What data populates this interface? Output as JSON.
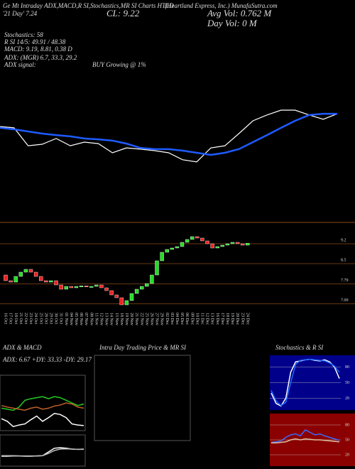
{
  "header": {
    "title": "Ge Mt Intraday ADX,MACD,R SI,Stochastics,MR SI Charts HTLD",
    "company": "(Heartland Express, Inc.) MunafaSutra.com",
    "ma_label": "'21 Day' 7.24",
    "close": "CL: 9.22",
    "avg_vol": "Avg Vol: 0.762 M",
    "day_vol": "Day Vol: 0 M"
  },
  "stats": [
    "Stochastics: 58",
    "R SI 14/5: 49.91 / 48.38",
    "MACD: 9.19, 8.81, 0.38 D",
    "ADX: (MGR) 6.7, 33.3, 29.2",
    "ADX signal:",
    "BUY Growing @ 1%"
  ],
  "chart_data": [
    {
      "type": "line",
      "ylim": [
        6.5,
        10
      ],
      "series": [
        {
          "name": "Price",
          "color": "#ffffff",
          "values": [
            8.41,
            8.37,
            7.78,
            7.83,
            8.02,
            7.78,
            7.9,
            7.85,
            7.55,
            7.71,
            7.67,
            7.62,
            7.55,
            7.32,
            7.25,
            7.71,
            7.78,
            8.18,
            8.6,
            8.79,
            8.95,
            8.95,
            8.79,
            8.65,
            8.83
          ]
        },
        {
          "name": "MA",
          "color": "#1e5bff",
          "values": [
            8.37,
            8.32,
            8.25,
            8.18,
            8.13,
            8.09,
            8.02,
            7.99,
            7.95,
            7.85,
            7.71,
            7.67,
            7.67,
            7.62,
            7.55,
            7.48,
            7.55,
            7.67,
            7.9,
            8.13,
            8.37,
            8.6,
            8.79,
            8.83,
            8.83
          ]
        }
      ]
    },
    {
      "type": "candlestick",
      "categories": [
        "16 Oct",
        "17 Oct",
        "18 Oct",
        "21 Oct",
        "22 Oct",
        "23 Oct",
        "24 Oct",
        "25 Oct",
        "28 Oct",
        "29 Oct",
        "30 Oct",
        "31 Oct",
        "01 Nov",
        "04 Nov",
        "05 Nov",
        "06 Nov",
        "07 Nov",
        "08 Nov",
        "11 Nov",
        "12 Nov",
        "13 Nov",
        "14 Nov",
        "15 Nov",
        "18 Nov",
        "19 Nov",
        "20 Nov",
        "21 Nov",
        "22 Nov",
        "25 Nov",
        "26 Nov",
        "27 Nov",
        "29 Nov",
        "02 Dec",
        "03 Dec",
        "04 Dec",
        "05 Dec",
        "06 Dec",
        "09 Dec",
        "10 Dec",
        "11 Dec",
        "12 Dec",
        "13 Dec",
        "16 Dec",
        "17 Dec",
        "18 Dec",
        "19 Dec",
        "20 Dec",
        "23 Dec",
        "24 Dec"
      ],
      "open": [
        8.1,
        7.9,
        7.85,
        8.05,
        8.2,
        8.3,
        8.2,
        8.05,
        7.9,
        7.85,
        7.9,
        7.75,
        7.6,
        7.7,
        7.65,
        7.7,
        7.72,
        7.68,
        7.7,
        7.75,
        7.65,
        7.55,
        7.4,
        7.3,
        7.05,
        7.2,
        7.45,
        7.6,
        7.7,
        7.8,
        8.1,
        8.6,
        8.9,
        9.0,
        9.05,
        9.1,
        9.25,
        9.35,
        9.45,
        9.4,
        9.3,
        9.2,
        9.05,
        9.1,
        9.15,
        9.2,
        9.25,
        9.2,
        9.15
      ],
      "close": [
        7.9,
        7.85,
        8.05,
        8.2,
        8.3,
        8.2,
        8.05,
        7.9,
        7.85,
        7.9,
        7.75,
        7.6,
        7.7,
        7.65,
        7.7,
        7.72,
        7.68,
        7.7,
        7.75,
        7.65,
        7.55,
        7.4,
        7.3,
        7.05,
        7.2,
        7.45,
        7.6,
        7.7,
        7.8,
        8.1,
        8.6,
        8.9,
        9.0,
        9.05,
        9.1,
        9.25,
        9.35,
        9.45,
        9.4,
        9.3,
        9.2,
        9.05,
        9.1,
        9.15,
        9.2,
        9.25,
        9.2,
        9.15,
        9.22
      ],
      "ylim": [
        6.9,
        9.9
      ],
      "yticks": [
        9.2,
        8.5,
        7.79,
        7.09
      ]
    },
    {
      "type": "line",
      "title": "ADX & MACD",
      "label": "ADX: 6.67 +DY: 33.33 -DY: 29.17",
      "ylim": [
        0,
        100
      ],
      "series": [
        {
          "name": "+DI",
          "color": "#22cc22",
          "values": [
            40,
            38,
            36,
            42,
            55,
            58,
            60,
            62,
            58,
            62,
            60,
            55,
            50,
            45,
            48
          ]
        },
        {
          "name": "-DI",
          "color": "#c0602a",
          "values": [
            45,
            42,
            40,
            38,
            36,
            40,
            42,
            38,
            40,
            44,
            46,
            50,
            48,
            42,
            40
          ]
        },
        {
          "name": "ADX",
          "color": "#ffffff",
          "values": [
            20,
            15,
            5,
            8,
            10,
            18,
            25,
            15,
            22,
            30,
            28,
            22,
            10,
            8,
            7
          ]
        }
      ]
    },
    {
      "type": "line",
      "ylim": [
        0,
        100
      ],
      "series": [
        {
          "name": "MACD",
          "color": "#ffffff",
          "values": [
            30,
            30,
            31,
            31,
            30,
            30,
            31,
            32,
            45,
            58,
            60,
            58,
            55,
            54,
            55
          ]
        },
        {
          "name": "Signal",
          "color": "#bbbbbb",
          "values": [
            32,
            32,
            32,
            31,
            31,
            31,
            31,
            32,
            40,
            50,
            55,
            56,
            55,
            54,
            54
          ]
        }
      ]
    },
    {
      "type": "panel",
      "title": "Intra Day Trading Price & MR SI"
    },
    {
      "type": "line",
      "title": "Stochastics & R SI",
      "ylim": [
        0,
        100
      ],
      "yticks": [
        80,
        50,
        20
      ],
      "series": [
        {
          "name": "%K",
          "color": "#ffffff",
          "values": [
            30,
            10,
            5,
            20,
            70,
            90,
            92,
            94,
            95,
            93,
            92,
            94,
            90,
            80,
            58
          ]
        },
        {
          "name": "%D",
          "color": "#1e6bff",
          "values": [
            35,
            15,
            6,
            12,
            50,
            85,
            93,
            94,
            95,
            94,
            93,
            92,
            88,
            82,
            70
          ]
        }
      ]
    },
    {
      "type": "line",
      "ylim": [
        0,
        100
      ],
      "yticks": [
        80,
        50,
        20
      ],
      "series": [
        {
          "name": "RSI",
          "color": "#3a6bff",
          "values": [
            45,
            46,
            48,
            55,
            60,
            62,
            58,
            70,
            65,
            60,
            62,
            58,
            55,
            52,
            49
          ]
        },
        {
          "name": "MRSI",
          "color": "#e0c0a0",
          "values": [
            44,
            44,
            45,
            46,
            50,
            52,
            50,
            52,
            51,
            50,
            50,
            49,
            48,
            47,
            46
          ]
        }
      ]
    }
  ]
}
